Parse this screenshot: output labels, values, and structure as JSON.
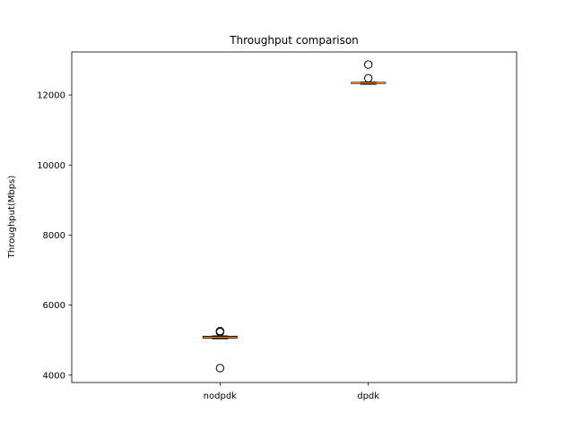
{
  "chart_data": {
    "type": "box",
    "title": "Throughput comparison",
    "xlabel": "",
    "ylabel": "Throughput(Mbps)",
    "categories": [
      "nodpdk",
      "dpdk"
    ],
    "ylim": [
      3790,
      13230
    ],
    "yticks": [
      4000,
      6000,
      8000,
      10000,
      12000
    ],
    "yticklabels": [
      "4000",
      "6000",
      "8000",
      "10000",
      "12000"
    ],
    "grid": false,
    "boxes": [
      {
        "category": "nodpdk",
        "whisker_low": 5040,
        "q1": 5060,
        "median": 5080,
        "q3": 5110,
        "whisker_high": 5120,
        "outliers": [
          4200,
          5230,
          5260
        ]
      },
      {
        "category": "dpdk",
        "whisker_low": 12310,
        "q1": 12330,
        "median": 12345,
        "q3": 12360,
        "whisker_high": 12370,
        "outliers": [
          12480,
          12870
        ]
      }
    ],
    "colors": {
      "box": "#000000",
      "median": "#ff7f0e",
      "outlier": "#000000",
      "axes": "#000000"
    }
  }
}
